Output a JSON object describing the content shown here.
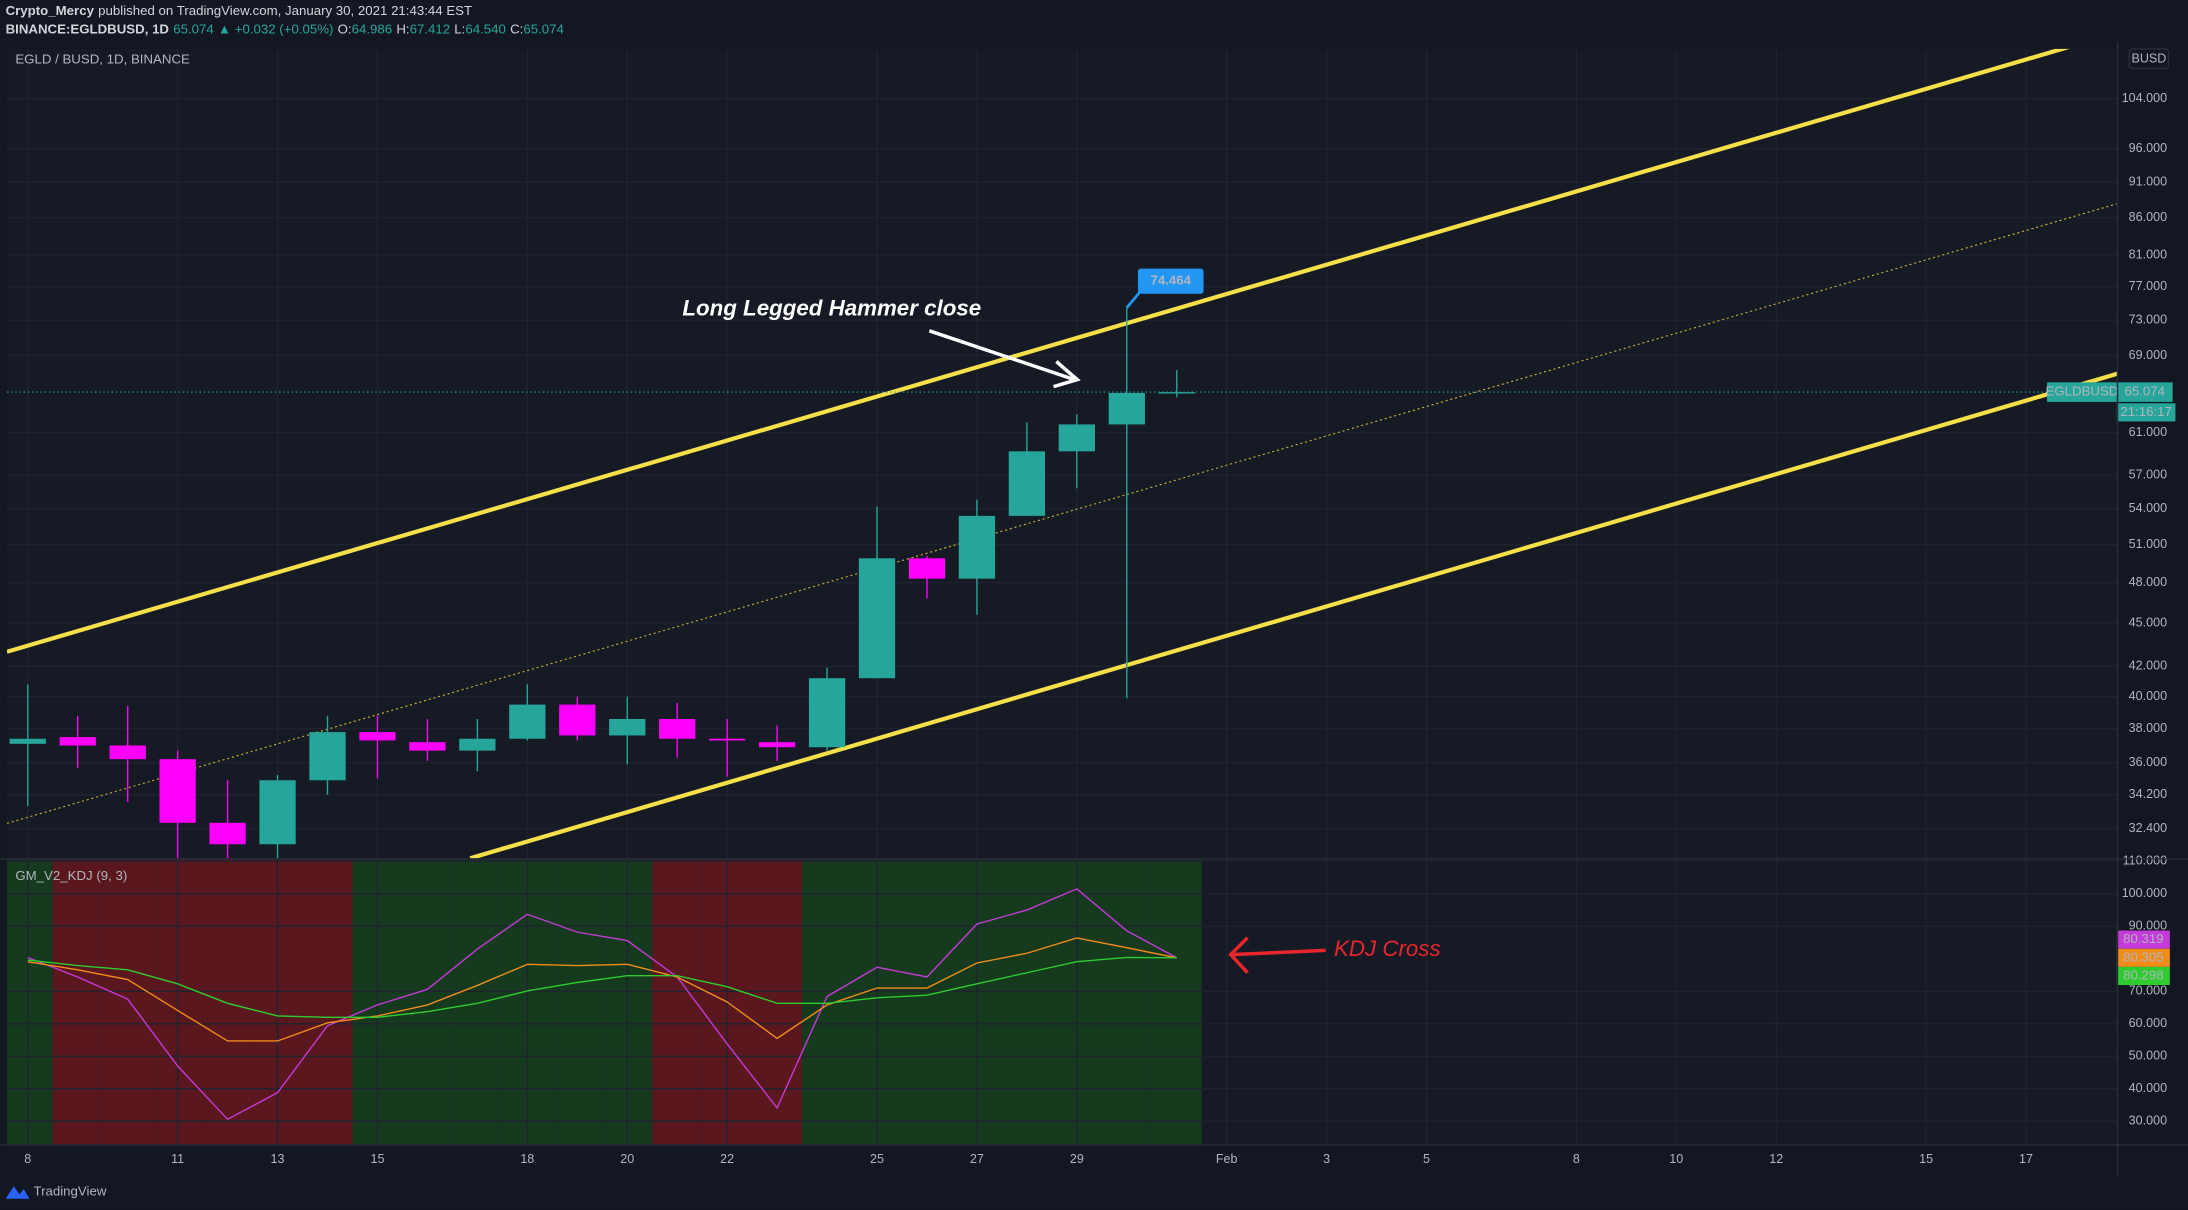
{
  "header": {
    "author": "Crypto_Mercy",
    "published": "published on TradingView.com, January 30, 2021 21:43:44 EST",
    "symbol": "BINANCE:EGLDBUSD, 1D",
    "last": "65.074",
    "change": "▲ +0.032 (+0.05%)",
    "ohlc": [
      {
        "key": "O:",
        "value": "64.986"
      },
      {
        "key": "H:",
        "value": "67.412"
      },
      {
        "key": "L:",
        "value": "64.540"
      },
      {
        "key": "C:",
        "value": "65.074"
      }
    ]
  },
  "chart_data": [
    {
      "type": "candlestick",
      "title": "EGLD / BUSD, 1D, BINANCE",
      "categories": [
        "8",
        null,
        null,
        "11",
        null,
        "13",
        null,
        "15",
        null,
        null,
        "18",
        null,
        "20",
        null,
        "22",
        null,
        null,
        "25",
        null,
        "27",
        null,
        "29",
        null,
        null,
        "Feb",
        null,
        "3",
        null,
        "5",
        null,
        null,
        "8",
        null,
        "10",
        null,
        "12",
        null,
        null,
        "15",
        null,
        "17",
        null
      ],
      "open": [
        37.1,
        37.5,
        37.0,
        36.2,
        32.7,
        31.6,
        35.0,
        37.8,
        37.2,
        36.7,
        37.4,
        39.5,
        37.6,
        38.6,
        37.4,
        37.2,
        36.9,
        41.2,
        49.9,
        48.3,
        53.4,
        59.2,
        61.8,
        64.986,
        null,
        null,
        null,
        null,
        null,
        null,
        null,
        null,
        null,
        null,
        null,
        null,
        null,
        null,
        null,
        null,
        null,
        null
      ],
      "high": [
        40.8,
        38.8,
        39.4,
        36.7,
        35.0,
        35.3,
        38.8,
        38.8,
        38.6,
        38.6,
        40.8,
        40.0,
        40.0,
        39.6,
        38.6,
        38.2,
        41.9,
        54.2,
        50.1,
        54.8,
        62.0,
        62.8,
        74.464,
        67.412,
        null,
        null,
        null,
        null,
        null,
        null,
        null,
        null,
        null,
        null,
        null,
        null,
        null,
        null,
        null,
        null,
        null,
        null
      ],
      "low": [
        33.6,
        35.7,
        33.8,
        30.5,
        30.5,
        30.8,
        34.2,
        35.1,
        36.1,
        35.5,
        37.3,
        37.3,
        35.9,
        36.3,
        35.2,
        36.1,
        36.7,
        41.2,
        46.8,
        45.6,
        53.4,
        55.8,
        39.9,
        64.54,
        null,
        null,
        null,
        null,
        null,
        null,
        null,
        null,
        null,
        null,
        null,
        null,
        null,
        null,
        null,
        null,
        null,
        null
      ],
      "close": [
        37.4,
        37.0,
        36.2,
        32.7,
        31.6,
        35.0,
        37.8,
        37.3,
        36.7,
        37.4,
        39.5,
        37.6,
        38.6,
        37.4,
        37.3,
        36.9,
        41.2,
        49.9,
        48.3,
        53.4,
        59.2,
        61.8,
        64.986,
        65.074,
        null,
        null,
        null,
        null,
        null,
        null,
        null,
        null,
        null,
        null,
        null,
        null,
        null,
        null,
        null,
        null,
        null,
        null
      ],
      "up_color": "#26a69a",
      "down_color": "#ff00ff",
      "ylim": [
        30.9,
        112.6
      ],
      "log_scale": true,
      "grid": true,
      "yticks": [
        {
          "value": 32.4,
          "label": "32.400"
        },
        {
          "value": 34.2,
          "label": "34.200"
        },
        {
          "value": 36,
          "label": "36.000"
        },
        {
          "value": 38,
          "label": "38.000"
        },
        {
          "value": 40,
          "label": "40.000"
        },
        {
          "value": 42,
          "label": "42.000"
        },
        {
          "value": 45,
          "label": "45.000"
        },
        {
          "value": 48,
          "label": "48.000"
        },
        {
          "value": 51,
          "label": "51.000"
        },
        {
          "value": 54,
          "label": "54.000"
        },
        {
          "value": 57,
          "label": "57.000"
        },
        {
          "value": 61,
          "label": "61.000"
        },
        {
          "value": 69,
          "label": "69.000"
        },
        {
          "value": 73,
          "label": "73.000"
        },
        {
          "value": 77,
          "label": "77.000"
        },
        {
          "value": 81,
          "label": "81.000"
        },
        {
          "value": 86,
          "label": "86.000"
        },
        {
          "value": 91,
          "label": "91.000"
        },
        {
          "value": 96,
          "label": "96.000"
        },
        {
          "value": 104,
          "label": "104.000"
        }
      ],
      "currency": "BUSD",
      "symbol_tag": "EGLDBUSD",
      "last_value_label": "65.074",
      "countdown": "21:16:17",
      "high_label": "74.464",
      "annotation": "Long Legged Hammer close"
    },
    {
      "type": "line",
      "title": "GM_V2_KDJ (9, 3)",
      "series": [
        {
          "color": "#c43ad8",
          "last_value_label": "80.319",
          "values": [
            80.4,
            74.4,
            67.6,
            47.0,
            30.6,
            38.8,
            59.4,
            65.8,
            70.6,
            83.0,
            93.7,
            88.2,
            85.6,
            74.4,
            53.8,
            34.1,
            68.4,
            77.4,
            74.4,
            90.7,
            95.0,
            101.5,
            88.6,
            80.319,
            null,
            null,
            null,
            null,
            null,
            null,
            null,
            null,
            null,
            null,
            null,
            null,
            null,
            null,
            null,
            null,
            null,
            null
          ]
        },
        {
          "color": "#f08c1a",
          "last_value_label": "80.305",
          "values": [
            79.1,
            76.6,
            73.6,
            64.1,
            54.7,
            54.7,
            60.3,
            62.4,
            65.8,
            71.8,
            78.3,
            77.9,
            78.3,
            74.4,
            66.7,
            55.5,
            65.8,
            71.0,
            71.0,
            78.7,
            81.7,
            86.4,
            83.4,
            80.305,
            null,
            null,
            null,
            null,
            null,
            null,
            null,
            null,
            null,
            null,
            null,
            null,
            null,
            null,
            null,
            null,
            null,
            null
          ]
        },
        {
          "color": "#2ecc2e",
          "last_value_label": "80.298",
          "values": [
            79.6,
            77.9,
            76.6,
            72.3,
            66.3,
            62.4,
            62.0,
            62.0,
            63.7,
            66.3,
            70.1,
            72.7,
            74.8,
            74.8,
            71.4,
            66.3,
            66.3,
            68.0,
            68.8,
            72.3,
            75.7,
            79.1,
            80.4,
            80.298,
            null,
            null,
            null,
            null,
            null,
            null,
            null,
            null,
            null,
            null,
            null,
            null,
            null,
            null,
            null,
            null,
            null,
            null
          ]
        }
      ],
      "bull_zone_color": "#163a1e",
      "bear_zone_color": "#5a171d",
      "ylim": [
        22.9,
        110.5
      ],
      "grid": true,
      "yticks": [
        {
          "value": 30,
          "label": "30.000"
        },
        {
          "value": 40,
          "label": "40.000"
        },
        {
          "value": 50,
          "label": "50.000"
        },
        {
          "value": 60,
          "label": "60.000"
        },
        {
          "value": 70,
          "label": "70.000"
        },
        {
          "value": 90,
          "label": "90.000"
        },
        {
          "value": 100,
          "label": "100.000"
        },
        {
          "value": 110,
          "label": "110.000"
        }
      ],
      "annotation": "KDJ Cross"
    }
  ],
  "footer": {
    "brand": "TradingView"
  }
}
